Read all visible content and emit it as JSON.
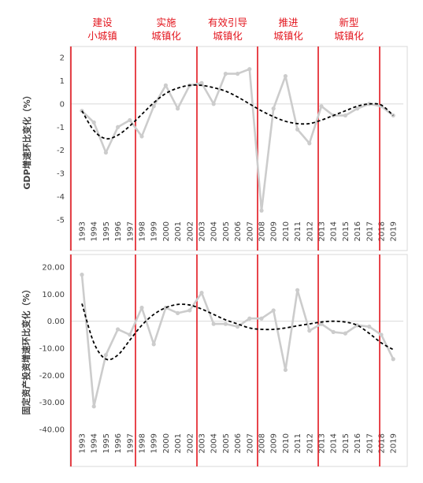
{
  "phases": [
    {
      "lines": [
        "建设",
        "小城镇"
      ]
    },
    {
      "lines": [
        "实施",
        "城镇化"
      ]
    },
    {
      "lines": [
        "有效引导",
        "城镇化"
      ]
    },
    {
      "lines": [
        "推进",
        "城镇化"
      ]
    },
    {
      "lines": [
        "新型",
        "城镇化"
      ]
    }
  ],
  "colors": {
    "divider": "#e3161e",
    "actual": "#cccccc",
    "trend": "#000000",
    "phase_text": "#e3161e"
  },
  "chart_data": [
    {
      "type": "line",
      "ylabel": "GDP增速环比变化（%）",
      "categories": [
        "1993",
        "1994",
        "1995",
        "1996",
        "1997",
        "1998",
        "1999",
        "2000",
        "2001",
        "2002",
        "2003",
        "2004",
        "2005",
        "2006",
        "2007",
        "2008",
        "2009",
        "2010",
        "2011",
        "2012",
        "2013",
        "2014",
        "2015",
        "2016",
        "2017",
        "2018",
        "2019"
      ],
      "values": [
        -0.3,
        -0.8,
        -2.1,
        -1.0,
        -0.7,
        -1.4,
        -0.1,
        0.8,
        -0.2,
        0.8,
        0.9,
        0.0,
        1.3,
        1.3,
        1.5,
        -4.6,
        -0.2,
        1.2,
        -1.1,
        -1.7,
        -0.1,
        -0.5,
        -0.5,
        -0.2,
        0.0,
        -0.1,
        -0.5
      ],
      "trend": [
        -0.3,
        -1.15,
        -1.5,
        -1.35,
        -0.95,
        -0.45,
        0.05,
        0.45,
        0.68,
        0.8,
        0.8,
        0.7,
        0.55,
        0.3,
        0.0,
        -0.3,
        -0.55,
        -0.75,
        -0.85,
        -0.85,
        -0.7,
        -0.5,
        -0.3,
        -0.1,
        0.0,
        -0.05,
        -0.5
      ],
      "yticks": [
        "2",
        "1",
        "0",
        "-1",
        "-2",
        "-3",
        "-4",
        "-5"
      ],
      "ylim": [
        -5,
        2
      ],
      "dividers_after": [
        "1997",
        "2002",
        "2007",
        "2012",
        "2017"
      ]
    },
    {
      "type": "line",
      "ylabel": "固定资产投资增速环比变化（%）",
      "categories": [
        "1993",
        "1994",
        "1995",
        "1996",
        "1997",
        "1998",
        "1999",
        "2000",
        "2001",
        "2002",
        "2003",
        "2004",
        "2005",
        "2006",
        "2007",
        "2008",
        "2009",
        "2010",
        "2011",
        "2012",
        "2013",
        "2014",
        "2015",
        "2016",
        "2017",
        "2018",
        "2019"
      ],
      "values": [
        17.2,
        -31.5,
        -12.5,
        -3.0,
        -5.0,
        5.0,
        -8.5,
        5.0,
        3.0,
        4.0,
        10.5,
        -1.0,
        -1.0,
        -2.0,
        1.0,
        1.0,
        4.0,
        -18.0,
        11.5,
        -3.5,
        -1.0,
        -4.0,
        -4.5,
        -1.5,
        -2.0,
        -5.0,
        -14.0
      ],
      "trend": [
        6.5,
        -8.0,
        -14.0,
        -12.5,
        -7.0,
        -1.5,
        2.5,
        5.0,
        6.2,
        6.0,
        4.5,
        2.5,
        0.5,
        -1.0,
        -2.5,
        -3.0,
        -3.0,
        -2.5,
        -1.7,
        -1.0,
        -0.3,
        0.0,
        -0.3,
        -1.5,
        -4.5,
        -8.0,
        -10.5
      ],
      "yticks": [
        "20.00",
        "10.00",
        "0.00",
        "-10.00",
        "-20.00",
        "-30.00",
        "-40.00"
      ],
      "ylim": [
        -40,
        20
      ],
      "dividers_after": [
        "1997",
        "2002",
        "2007",
        "2012",
        "2017"
      ]
    }
  ]
}
